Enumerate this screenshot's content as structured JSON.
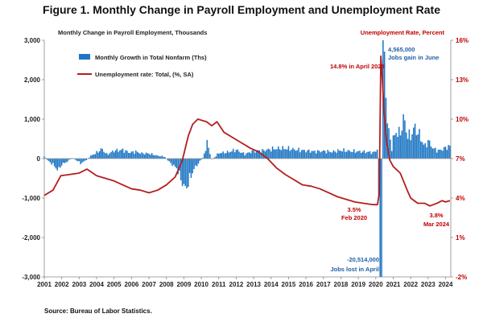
{
  "chart_data": {
    "type": "bar+line",
    "title": "Figure 1. Monthly Change in Payroll Employment and Unemployment Rate",
    "left_axis_label": "Monthly Change in Payroll Employment, Thousands",
    "right_axis_label": "Unemployment Rate, Percent",
    "left_ylim": [
      -3000,
      3000
    ],
    "left_ticks": [
      "3,000",
      "2,000",
      "1,000",
      "0",
      "-1,000",
      "-2,000",
      "-3,000"
    ],
    "left_tick_values": [
      3000,
      2000,
      1000,
      0,
      -1000,
      -2000,
      -3000
    ],
    "right_ylim": [
      -2,
      16
    ],
    "right_ticks": [
      "16%",
      "13%",
      "10%",
      "7%",
      "4%",
      "1%",
      "-2%"
    ],
    "right_tick_values": [
      16,
      13,
      10,
      7,
      4,
      1,
      -2
    ],
    "xlim": [
      2001,
      2024.3
    ],
    "x_ticks": [
      "2001",
      "2002",
      "2003",
      "2004",
      "2005",
      "2006",
      "2007",
      "2008",
      "2009",
      "2010",
      "2011",
      "2012",
      "2013",
      "2014",
      "2015",
      "2016",
      "2017",
      "2018",
      "2019",
      "2020",
      "2021",
      "2022",
      "2023",
      "2024"
    ],
    "legend": {
      "placement": "top-left",
      "bars_label": "Monthly Growth in Total Nonfarm (Ths)",
      "line_label": "Unemployment rate: Total, (%, SA)"
    },
    "series": [
      {
        "name": "Monthly Growth in Total Nonfarm (Ths)",
        "type": "bar",
        "color": "#1f77c4",
        "anchors": [
          [
            2001.0,
            60
          ],
          [
            2001.2,
            -50
          ],
          [
            2001.5,
            -150
          ],
          [
            2001.8,
            -300
          ],
          [
            2002.0,
            -150
          ],
          [
            2002.3,
            -80
          ],
          [
            2002.6,
            20
          ],
          [
            2002.9,
            -60
          ],
          [
            2003.1,
            -120
          ],
          [
            2003.4,
            -40
          ],
          [
            2003.7,
            80
          ],
          [
            2004.0,
            150
          ],
          [
            2004.3,
            250
          ],
          [
            2004.6,
            100
          ],
          [
            2005.0,
            200
          ],
          [
            2005.5,
            220
          ],
          [
            2005.9,
            150
          ],
          [
            2006.2,
            180
          ],
          [
            2006.6,
            130
          ],
          [
            2007.0,
            130
          ],
          [
            2007.5,
            70
          ],
          [
            2007.9,
            50
          ],
          [
            2008.2,
            -100
          ],
          [
            2008.6,
            -250
          ],
          [
            2008.95,
            -650
          ],
          [
            2009.1,
            -790
          ],
          [
            2009.3,
            -550
          ],
          [
            2009.6,
            -250
          ],
          [
            2009.9,
            -80
          ],
          [
            2010.1,
            30
          ],
          [
            2010.35,
            400
          ],
          [
            2010.6,
            -40
          ],
          [
            2011.0,
            140
          ],
          [
            2011.5,
            160
          ],
          [
            2012.0,
            220
          ],
          [
            2012.5,
            110
          ],
          [
            2013.0,
            200
          ],
          [
            2013.5,
            200
          ],
          [
            2014.0,
            240
          ],
          [
            2014.5,
            260
          ],
          [
            2015.0,
            250
          ],
          [
            2015.5,
            220
          ],
          [
            2016.0,
            200
          ],
          [
            2016.5,
            180
          ],
          [
            2017.0,
            190
          ],
          [
            2017.5,
            170
          ],
          [
            2018.0,
            210
          ],
          [
            2018.5,
            190
          ],
          [
            2019.0,
            180
          ],
          [
            2019.5,
            170
          ],
          [
            2019.9,
            150
          ],
          [
            2020.1,
            250
          ],
          [
            2020.2,
            -1400
          ],
          [
            2020.29,
            -20514
          ],
          [
            2020.37,
            2800
          ],
          [
            2020.45,
            4565
          ],
          [
            2020.53,
            1600
          ],
          [
            2020.62,
            1500
          ],
          [
            2020.7,
            700
          ],
          [
            2020.8,
            600
          ],
          [
            2020.9,
            200
          ],
          [
            2021.0,
            500
          ],
          [
            2021.2,
            700
          ],
          [
            2021.4,
            600
          ],
          [
            2021.6,
            1050
          ],
          [
            2021.8,
            600
          ],
          [
            2022.0,
            550
          ],
          [
            2022.2,
            800
          ],
          [
            2022.5,
            600
          ],
          [
            2022.8,
            300
          ],
          [
            2023.0,
            450
          ],
          [
            2023.3,
            250
          ],
          [
            2023.6,
            200
          ],
          [
            2023.9,
            250
          ],
          [
            2024.1,
            300
          ],
          [
            2024.25,
            310
          ]
        ]
      },
      {
        "name": "Unemployment rate: Total, (%, SA)",
        "type": "line",
        "color": "#b41e1e",
        "points": [
          [
            2001.0,
            4.2
          ],
          [
            2001.5,
            4.6
          ],
          [
            2001.95,
            5.7
          ],
          [
            2002.5,
            5.8
          ],
          [
            2003.0,
            5.9
          ],
          [
            2003.45,
            6.2
          ],
          [
            2004.0,
            5.7
          ],
          [
            2004.5,
            5.5
          ],
          [
            2005.0,
            5.3
          ],
          [
            2005.5,
            5.0
          ],
          [
            2006.0,
            4.7
          ],
          [
            2006.5,
            4.6
          ],
          [
            2007.0,
            4.4
          ],
          [
            2007.5,
            4.6
          ],
          [
            2008.0,
            5.0
          ],
          [
            2008.5,
            5.6
          ],
          [
            2008.9,
            6.8
          ],
          [
            2009.25,
            8.7
          ],
          [
            2009.5,
            9.6
          ],
          [
            2009.8,
            10.0
          ],
          [
            2010.3,
            9.8
          ],
          [
            2010.6,
            9.5
          ],
          [
            2010.9,
            9.8
          ],
          [
            2011.3,
            9.0
          ],
          [
            2011.8,
            8.6
          ],
          [
            2012.3,
            8.2
          ],
          [
            2012.8,
            7.8
          ],
          [
            2013.3,
            7.5
          ],
          [
            2013.8,
            7.0
          ],
          [
            2014.3,
            6.3
          ],
          [
            2014.8,
            5.8
          ],
          [
            2015.3,
            5.4
          ],
          [
            2015.8,
            5.0
          ],
          [
            2016.3,
            4.9
          ],
          [
            2016.8,
            4.7
          ],
          [
            2017.3,
            4.4
          ],
          [
            2017.8,
            4.1
          ],
          [
            2018.3,
            3.9
          ],
          [
            2018.8,
            3.7
          ],
          [
            2019.3,
            3.6
          ],
          [
            2019.8,
            3.5
          ],
          [
            2020.1,
            3.5
          ],
          [
            2020.2,
            4.4
          ],
          [
            2020.29,
            14.8
          ],
          [
            2020.37,
            13.2
          ],
          [
            2020.45,
            11.1
          ],
          [
            2020.6,
            8.4
          ],
          [
            2020.8,
            6.9
          ],
          [
            2021.0,
            6.4
          ],
          [
            2021.4,
            5.9
          ],
          [
            2021.8,
            4.6
          ],
          [
            2022.0,
            4.0
          ],
          [
            2022.4,
            3.6
          ],
          [
            2022.8,
            3.6
          ],
          [
            2023.1,
            3.4
          ],
          [
            2023.5,
            3.6
          ],
          [
            2023.8,
            3.8
          ],
          [
            2024.0,
            3.7
          ],
          [
            2024.25,
            3.8
          ]
        ]
      }
    ],
    "annotations": {
      "peak_rate": "14.8% in April 2020",
      "jobs_gain_value": "4,565,000",
      "jobs_gain_label": "Jobs gain in June",
      "low_rate_value": "3.5%",
      "low_rate_label": "Feb 2020",
      "latest_rate_value": "3.8%",
      "latest_rate_label": "Mar 2024",
      "jobs_lost_value": "-20,514,000",
      "jobs_lost_label": "Jobs lost in April"
    },
    "source": "Source: Bureau of Labor Statistics.",
    "grid": false
  }
}
